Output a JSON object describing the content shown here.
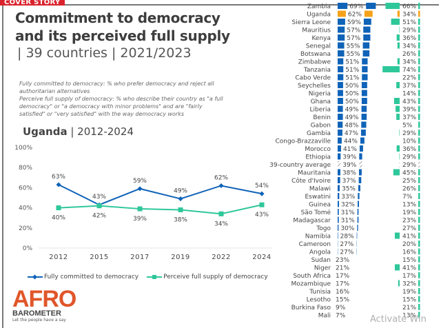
{
  "header": {
    "badge": "COVER STORY",
    "title_line1": "Commitment to democracy",
    "title_line2": "and its perceived full supply",
    "subtitle": "| 39 countries | 2021/2023",
    "note1": "Fully committed to democracy: % who prefer democracy and reject all authoritarian alternatives",
    "note2": "Perceive full supply of democracy: % who describe their country as \"a full democracy\" or \"a democracy with minor problems\" and are \"fairly satisfied\" or \"very satisfied\" with the way democracy works"
  },
  "uganda_heading": {
    "country": "Uganda",
    "range": "| 2012-2024"
  },
  "logo": {
    "line1": "AFRO",
    "line2": "BAROMETER",
    "tagline": "Let the people have a say"
  },
  "watermark": "Activate Win",
  "colors": {
    "committed": "#0f63b8",
    "supply": "#2ec79a",
    "highlight": "#f5a21a",
    "text": "#444444"
  },
  "chart_data": [
    {
      "type": "line",
      "title": "Uganda | 2012-2024",
      "x": [
        "2012",
        "2015",
        "2017",
        "2019",
        "2022",
        "2024"
      ],
      "ylim": [
        0,
        100
      ],
      "yticks": [
        "0%",
        "20%",
        "40%",
        "60%",
        "80%",
        "100%"
      ],
      "series": [
        {
          "name": "Fully committed to democracy",
          "values": [
            63,
            43,
            59,
            49,
            62,
            54
          ],
          "labels": [
            "63%",
            "43%",
            "59%",
            "49%",
            "62%",
            "54%"
          ]
        },
        {
          "name": "Perceive full supply of democracy",
          "values": [
            40,
            42,
            39,
            38,
            34,
            43
          ],
          "labels": [
            "40%",
            "42%",
            "39%",
            "38%",
            "34%",
            "43%"
          ]
        }
      ],
      "legend": "bottom",
      "grid": false
    },
    {
      "type": "bar",
      "title": "39 countries | 2021/2023",
      "categories": [
        "Zambia",
        "Uganda",
        "Sierra Leone",
        "Mauritius",
        "Kenya",
        "Senegal",
        "Botswana",
        "Zimbabwe",
        "Tanzania",
        "Cabo Verde",
        "Seychelles",
        "Nigeria",
        "Ghana",
        "Liberia",
        "Benin",
        "Gabon",
        "Gambia",
        "Congo-Brazzaville",
        "Morocco",
        "Ethiopia",
        "39-country average",
        "Mauritania",
        "Côte d'Ivoire",
        "Malawi",
        "Eswatini",
        "Guinea",
        "São Tomé",
        "Madagascar",
        "Togo",
        "Namibia",
        "Cameroon",
        "Angola",
        "Sudan",
        "Niger",
        "South Africa",
        "Mozambique",
        "Tunisia",
        "Lesotho",
        "Burkina Faso",
        "Mali"
      ],
      "highlight": "Uganda",
      "average": "39-country average",
      "series": [
        {
          "name": "Fully committed to democracy",
          "values": [
            69,
            62,
            59,
            57,
            57,
            55,
            55,
            51,
            51,
            51,
            50,
            50,
            50,
            49,
            49,
            48,
            47,
            44,
            41,
            39,
            39,
            38,
            37,
            35,
            33,
            32,
            31,
            31,
            30,
            28,
            27,
            27,
            23,
            21,
            17,
            17,
            16,
            15,
            9,
            7
          ]
        },
        {
          "name": "Perceive full supply of democracy",
          "values": [
            66,
            34,
            51,
            29,
            36,
            34,
            26,
            34,
            74,
            22,
            37,
            14,
            43,
            39,
            37,
            5,
            29,
            10,
            36,
            29,
            29,
            45,
            25,
            26,
            7,
            13,
            19,
            23,
            27,
            41,
            20,
            16,
            15,
            41,
            17,
            32,
            19,
            15,
            21,
            13
          ]
        }
      ]
    }
  ]
}
